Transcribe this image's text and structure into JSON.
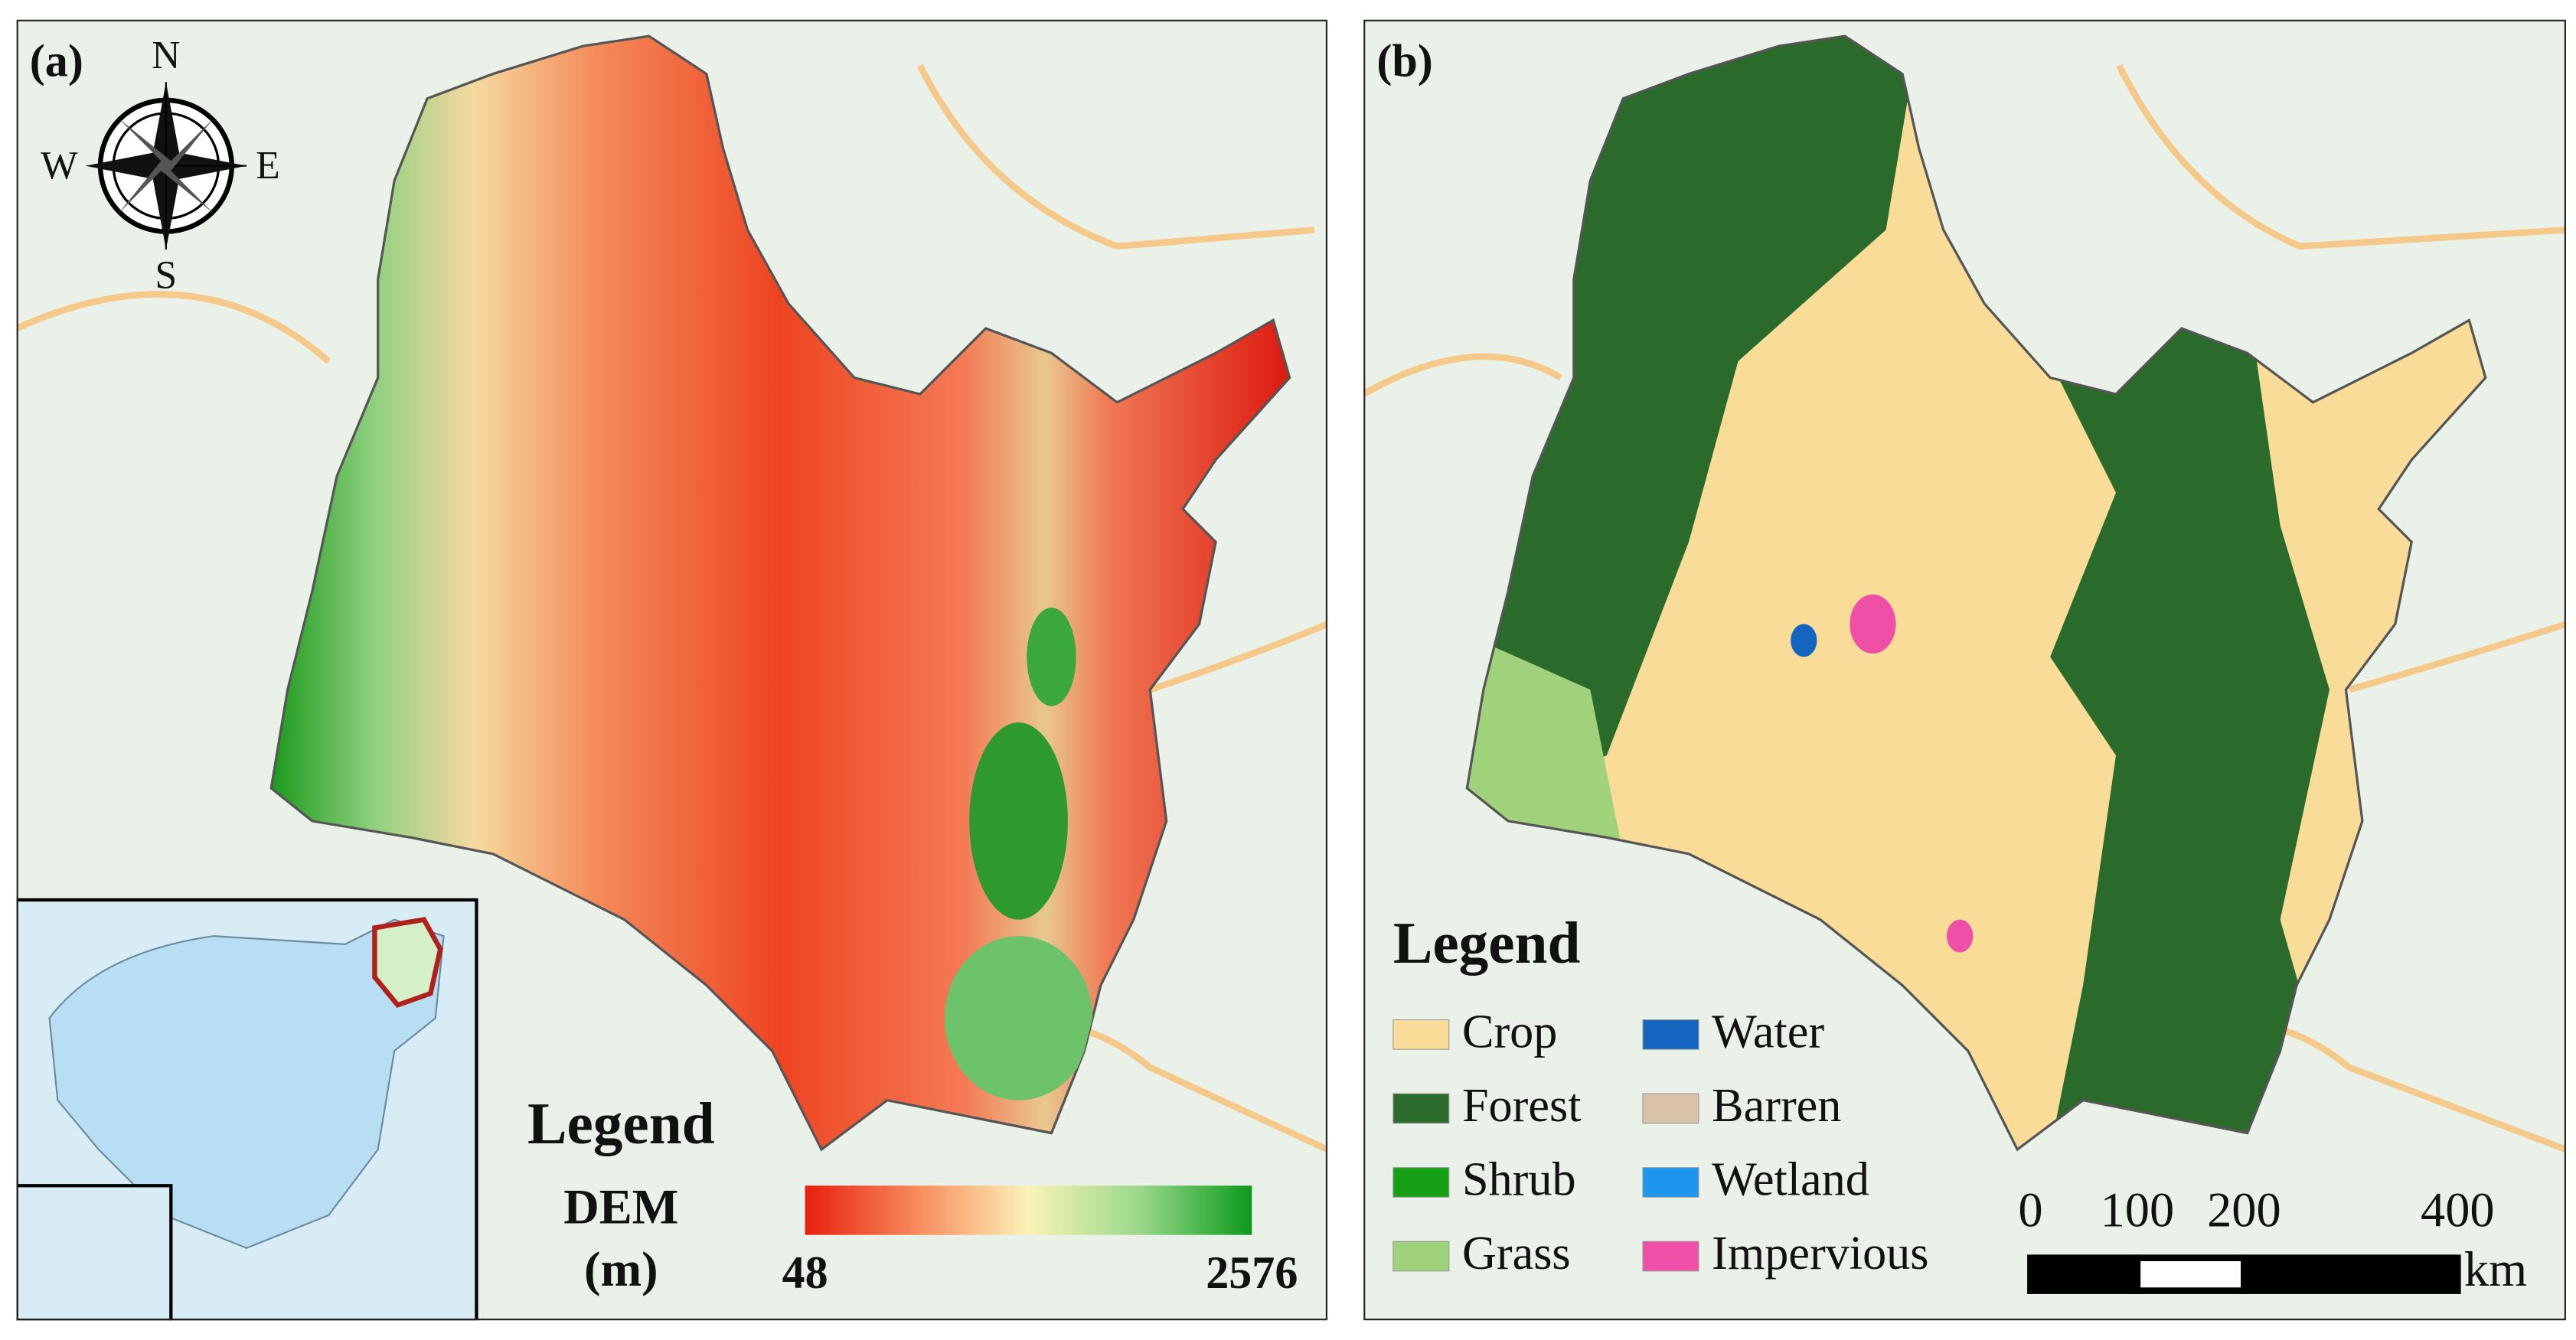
{
  "panels": [
    {
      "label": "(a)",
      "compass": {
        "north": "N",
        "east": "E",
        "south": "S",
        "west": "W"
      },
      "legend": {
        "title": "Legend",
        "variable": "DEM",
        "unit": "(m)",
        "min": 48,
        "max": 2576
      }
    },
    {
      "label": "(b)",
      "legend": {
        "title": "Legend",
        "items": [
          {
            "name": "Crop",
            "color": "#f8dc98"
          },
          {
            "name": "Forest",
            "color": "#2a6b2c"
          },
          {
            "name": "Shrub",
            "color": "#16a016"
          },
          {
            "name": "Grass",
            "color": "#9fd27a"
          },
          {
            "name": "Water",
            "color": "#1565c0"
          },
          {
            "name": "Barren",
            "color": "#d8c3a8"
          },
          {
            "name": "Wetland",
            "color": "#1e96f0"
          },
          {
            "name": "Impervious",
            "color": "#ef4fa6"
          }
        ]
      },
      "scale_bar": {
        "ticks": [
          0,
          100,
          200,
          400
        ],
        "unit": "km"
      }
    }
  ]
}
